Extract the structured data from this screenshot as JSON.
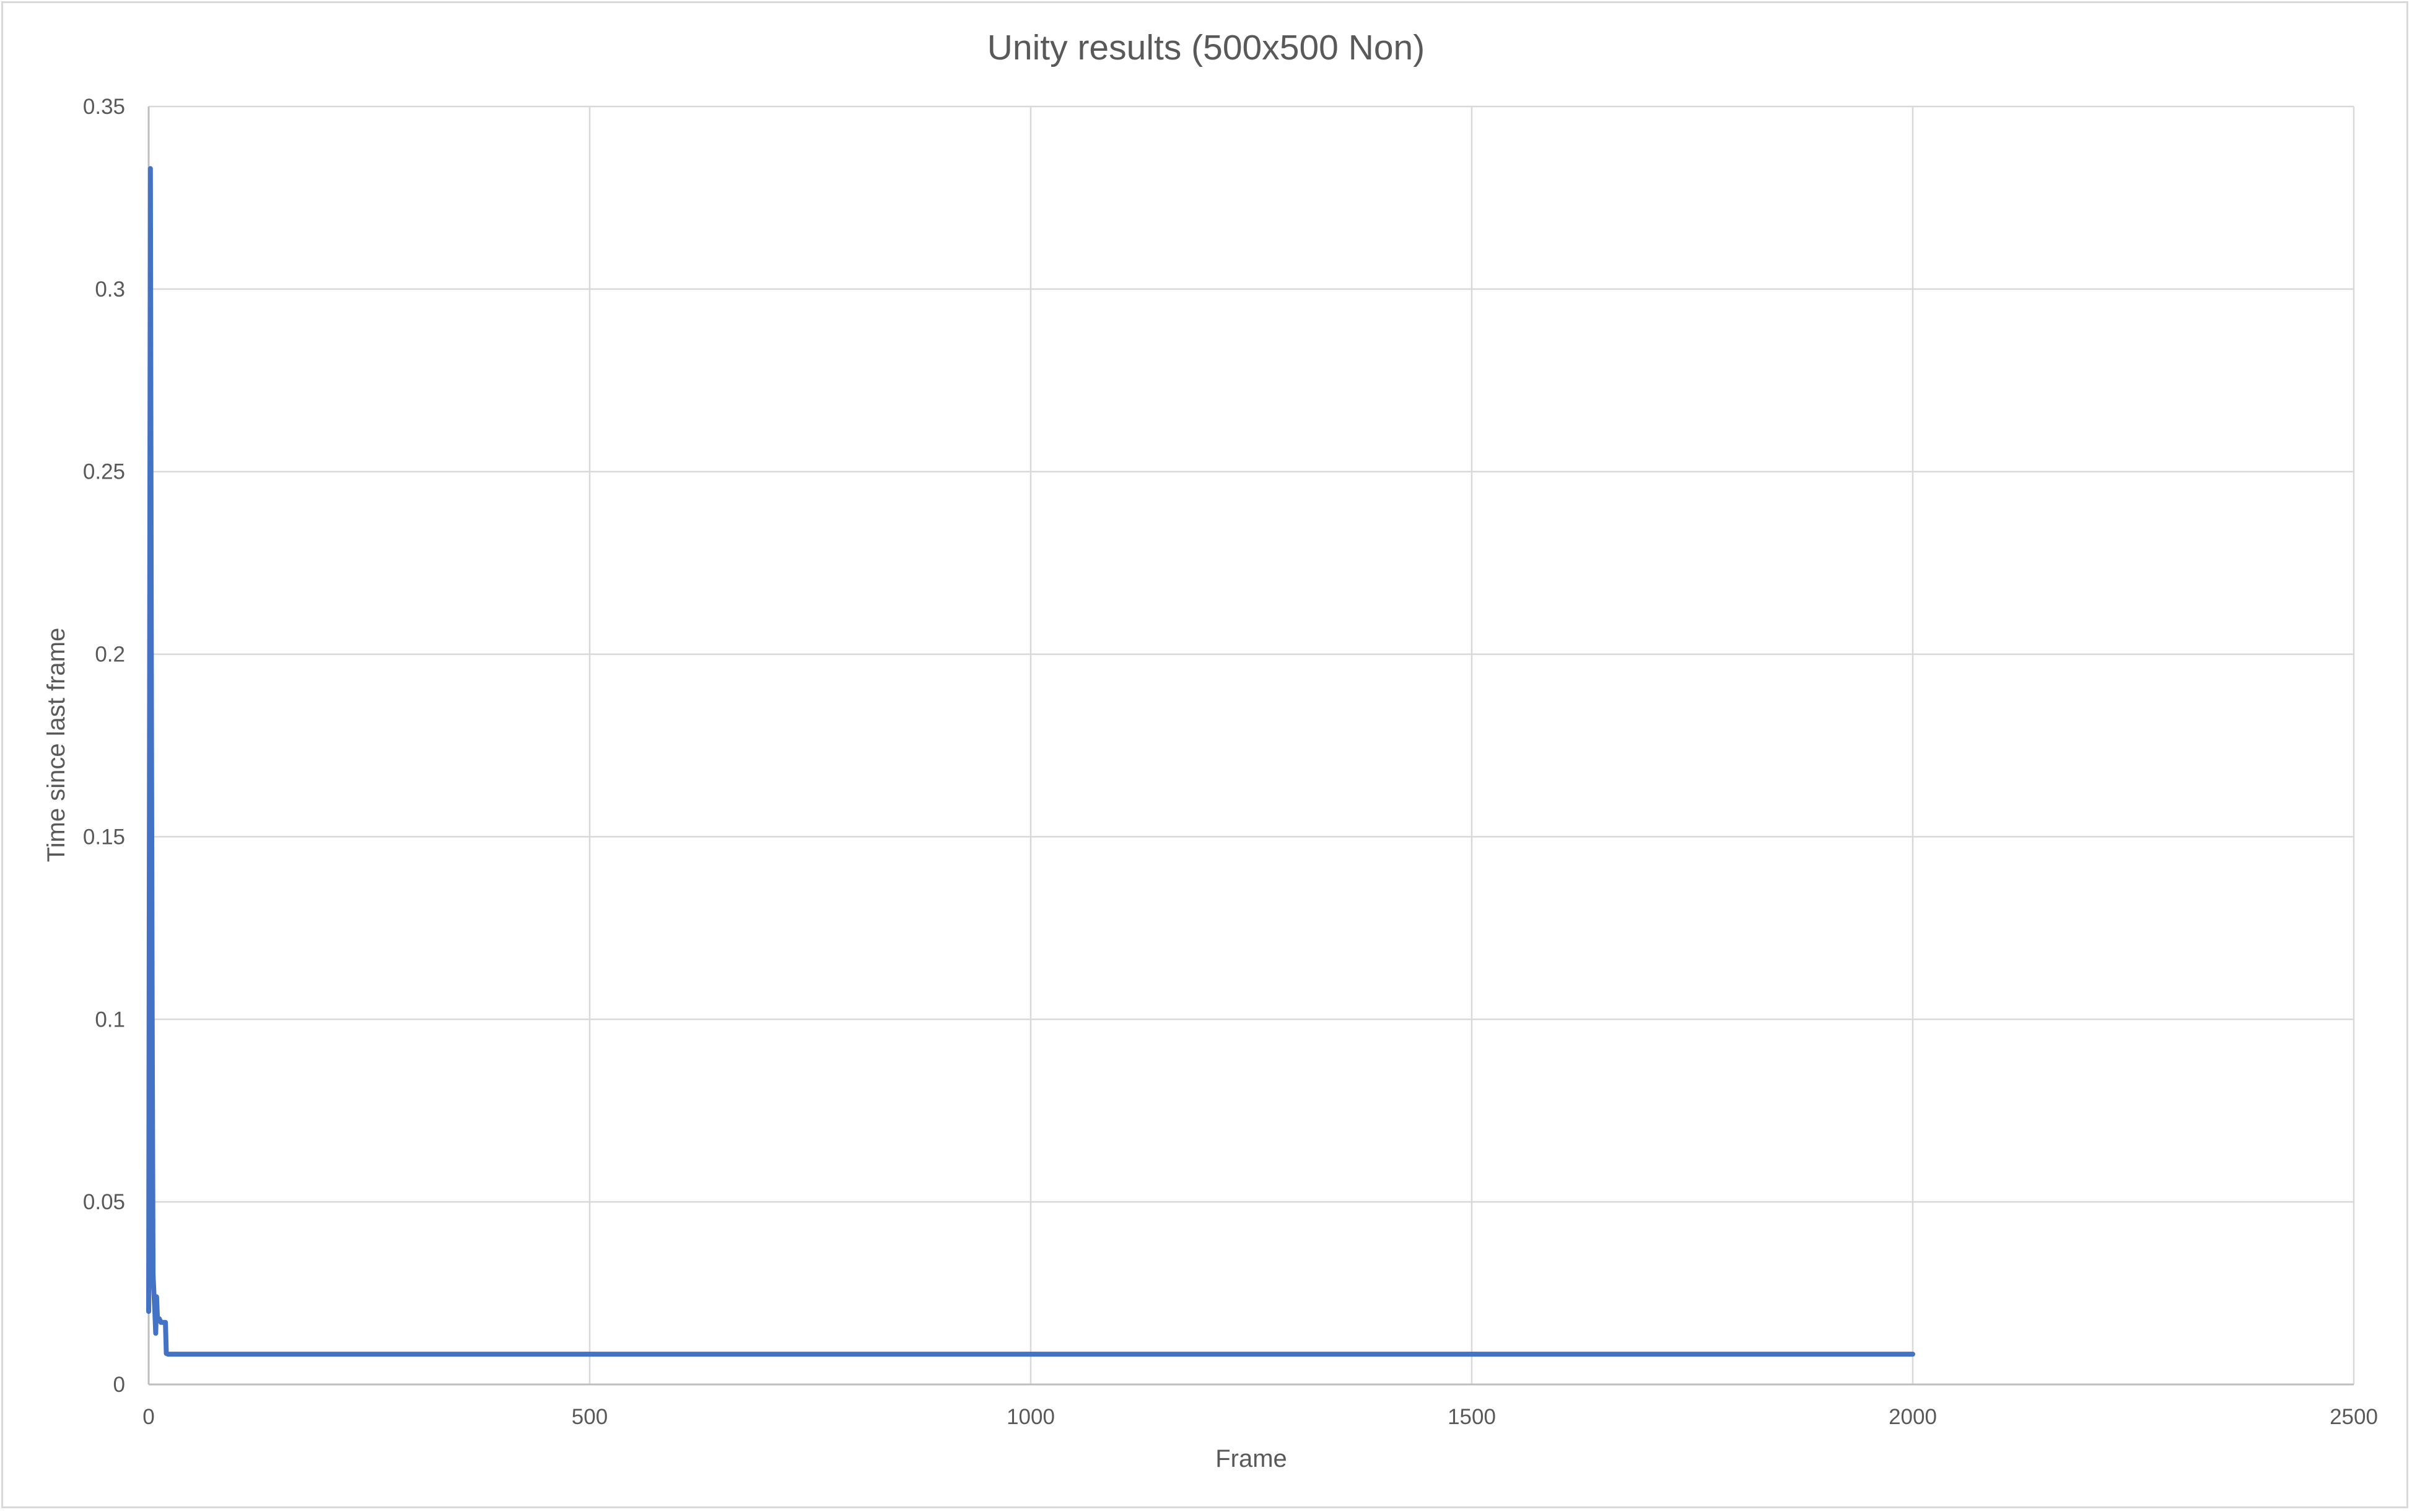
{
  "chart_data": {
    "type": "line",
    "title": "Unity results (500x500 Non)",
    "xlabel": "Frame",
    "ylabel": "Time since last frame",
    "xlim": [
      0,
      2500
    ],
    "ylim": [
      0,
      0.35
    ],
    "x_ticks": [
      "0",
      "500",
      "1000",
      "1500",
      "2000",
      "2500"
    ],
    "y_ticks": [
      "0",
      "0.05",
      "0.1",
      "0.15",
      "0.2",
      "0.25",
      "0.3",
      "0.35"
    ],
    "grid": true,
    "legend": "none",
    "series": [
      {
        "color": "#4472C4",
        "x": [
          0,
          2,
          3,
          4,
          5,
          6,
          7,
          8,
          9,
          10,
          12,
          14,
          16,
          18,
          19,
          20,
          22,
          30,
          50,
          100,
          200,
          300,
          400,
          500,
          600,
          700,
          800,
          900,
          1000,
          1100,
          1200,
          1300,
          1400,
          1500,
          1600,
          1700,
          1800,
          1900,
          2000
        ],
        "y": [
          0.02,
          0.333,
          0.2,
          0.1,
          0.03,
          0.025,
          0.02,
          0.014,
          0.024,
          0.018,
          0.018,
          0.017,
          0.017,
          0.017,
          0.017,
          0.0085,
          0.0083,
          0.0083,
          0.0083,
          0.0083,
          0.0083,
          0.0083,
          0.0083,
          0.0083,
          0.0083,
          0.0083,
          0.0083,
          0.0083,
          0.0083,
          0.0083,
          0.0083,
          0.0083,
          0.0083,
          0.0083,
          0.0083,
          0.0083,
          0.0083,
          0.0083,
          0.0083
        ]
      }
    ]
  }
}
